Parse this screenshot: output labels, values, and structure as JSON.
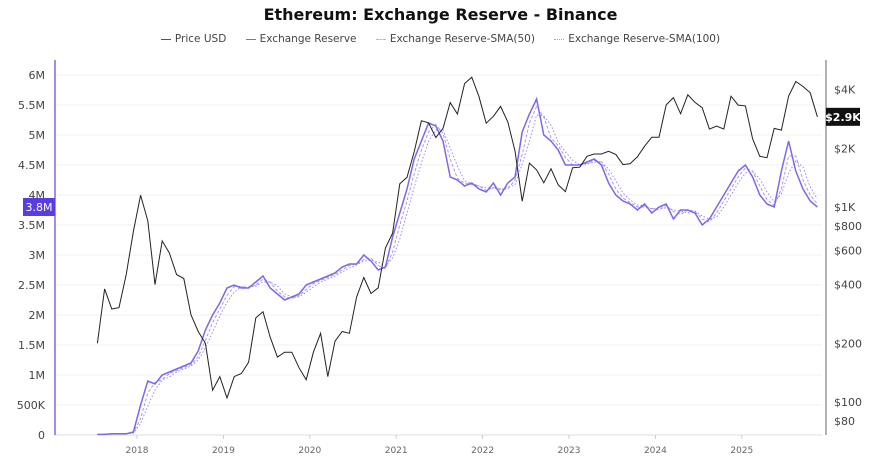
{
  "chart_data": {
    "type": "line",
    "title": "Ethereum: Exchange Reserve - Binance",
    "legend_position": "top",
    "grid": "horizontal",
    "colors": {
      "price": "#222222",
      "reserve": "#7b68ee",
      "sma50": "#9c8ff0",
      "sma100": "#8a80e8",
      "reserve_badge": "#5a3ce6",
      "price_badge": "#111111"
    },
    "series_labels": [
      "Price USD",
      "Exchange Reserve",
      "Exchange Reserve-SMA(50)",
      "Exchange Reserve-SMA(100)"
    ],
    "sma_periods_days": [
      50,
      100
    ],
    "x_ticks": [
      "2018",
      "2019",
      "2020",
      "2021",
      "2022",
      "2023",
      "2024",
      "2025"
    ],
    "left_axis": {
      "range": [
        0,
        6000000
      ],
      "ticks": [
        "0",
        "500K",
        "1M",
        "1.5M",
        "2M",
        "2.5M",
        "3M",
        "3.5M",
        "4M",
        "4.5M",
        "5M",
        "5.5M",
        "6M"
      ],
      "current_label": "3.8M"
    },
    "right_axis": {
      "scale": "log",
      "range": [
        70,
        5200
      ],
      "ticks": [
        "$80",
        "$100",
        "$200",
        "$400",
        "$600",
        "$800",
        "$1K",
        "$2K",
        "$4K"
      ],
      "tick_values": [
        80,
        100,
        200,
        400,
        600,
        800,
        1000,
        2000,
        4000
      ],
      "current_label": "$2.9K"
    },
    "dates": [
      "2017-07",
      "2017-08",
      "2017-09",
      "2017-10",
      "2017-11",
      "2017-12",
      "2018-01",
      "2018-02",
      "2018-03",
      "2018-04",
      "2018-05",
      "2018-06",
      "2018-07",
      "2018-08",
      "2018-09",
      "2018-10",
      "2018-11",
      "2018-12",
      "2019-01",
      "2019-02",
      "2019-03",
      "2019-04",
      "2019-05",
      "2019-06",
      "2019-07",
      "2019-08",
      "2019-09",
      "2019-10",
      "2019-11",
      "2019-12",
      "2020-01",
      "2020-02",
      "2020-03",
      "2020-04",
      "2020-05",
      "2020-06",
      "2020-07",
      "2020-08",
      "2020-09",
      "2020-10",
      "2020-11",
      "2020-12",
      "2021-01",
      "2021-02",
      "2021-03",
      "2021-04",
      "2021-05",
      "2021-06",
      "2021-07",
      "2021-08",
      "2021-09",
      "2021-10",
      "2021-11",
      "2021-12",
      "2022-01",
      "2022-02",
      "2022-03",
      "2022-04",
      "2022-05",
      "2022-06",
      "2022-07",
      "2022-08",
      "2022-09",
      "2022-10",
      "2022-11",
      "2022-12",
      "2023-01",
      "2023-02",
      "2023-03",
      "2023-04",
      "2023-05",
      "2023-06",
      "2023-07",
      "2023-08",
      "2023-09",
      "2023-10",
      "2023-11",
      "2023-12",
      "2024-01",
      "2024-02",
      "2024-03",
      "2024-04",
      "2024-05",
      "2024-06",
      "2024-07",
      "2024-08",
      "2024-09",
      "2024-10",
      "2024-11",
      "2024-12",
      "2025-01",
      "2025-02",
      "2025-03",
      "2025-04",
      "2025-05",
      "2025-06",
      "2025-07",
      "2025-08",
      "2025-09",
      "2025-10",
      "2025-11"
    ],
    "price_usd": [
      200,
      380,
      300,
      305,
      450,
      750,
      1150,
      850,
      400,
      670,
      580,
      450,
      430,
      280,
      230,
      200,
      115,
      135,
      105,
      135,
      140,
      160,
      270,
      290,
      215,
      170,
      180,
      180,
      150,
      130,
      180,
      225,
      135,
      205,
      230,
      225,
      345,
      435,
      360,
      385,
      615,
      735,
      1315,
      1420,
      1920,
      2770,
      2700,
      2270,
      2530,
      3430,
      3000,
      4300,
      4630,
      3680,
      2690,
      2920,
      3280,
      2730,
      1940,
      1070,
      1680,
      1550,
      1330,
      1570,
      1300,
      1200,
      1590,
      1600,
      1820,
      1870,
      1870,
      1930,
      1860,
      1650,
      1670,
      1810,
      2050,
      2280,
      2280,
      3340,
      3640,
      3010,
      3760,
      3440,
      3230,
      2510,
      2600,
      2510,
      3700,
      3330,
      3300,
      2240,
      1820,
      1790,
      2530,
      2480,
      3700,
      4400,
      4150,
      3850,
      2900
    ],
    "exchange_reserve_millions": [
      0.01,
      0.01,
      0.02,
      0.02,
      0.02,
      0.05,
      0.5,
      0.9,
      0.85,
      1.0,
      1.05,
      1.1,
      1.15,
      1.2,
      1.4,
      1.75,
      2.0,
      2.2,
      2.45,
      2.5,
      2.45,
      2.45,
      2.55,
      2.65,
      2.45,
      2.35,
      2.25,
      2.3,
      2.35,
      2.5,
      2.55,
      2.6,
      2.65,
      2.7,
      2.8,
      2.85,
      2.85,
      3.0,
      2.9,
      2.75,
      2.8,
      3.3,
      3.7,
      4.1,
      4.6,
      4.9,
      5.2,
      5.15,
      4.9,
      4.3,
      4.25,
      4.15,
      4.2,
      4.1,
      4.05,
      4.2,
      4.0,
      4.2,
      4.3,
      5.05,
      5.35,
      5.6,
      5.0,
      4.9,
      4.75,
      4.5,
      4.5,
      4.5,
      4.55,
      4.6,
      4.5,
      4.2,
      4.0,
      3.9,
      3.85,
      3.75,
      3.85,
      3.7,
      3.8,
      3.85,
      3.6,
      3.75,
      3.75,
      3.7,
      3.5,
      3.6,
      3.8,
      4.0,
      4.2,
      4.4,
      4.5,
      4.3,
      4.0,
      3.85,
      3.8,
      4.4,
      4.9,
      4.4,
      4.1,
      3.9,
      3.8
    ]
  }
}
